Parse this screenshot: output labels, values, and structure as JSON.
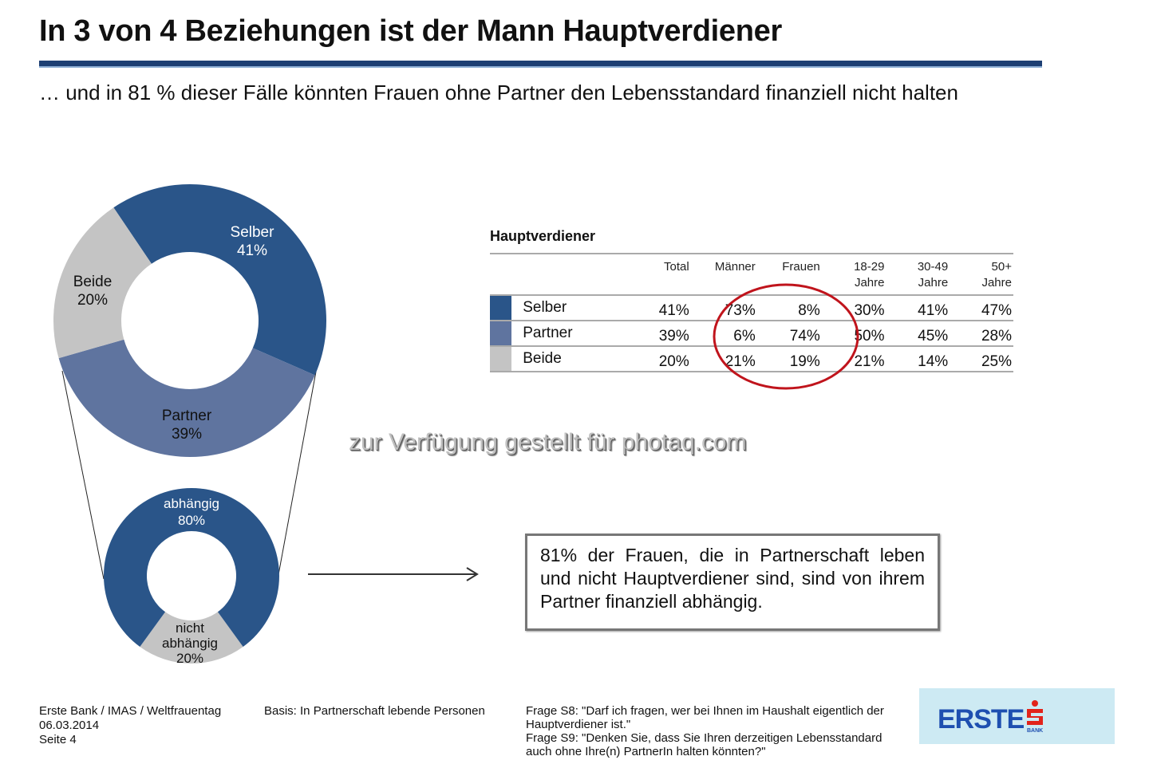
{
  "header": {
    "title": "In 3 von 4 Beziehungen ist der Mann Hauptverdiener",
    "subtitle": "… und in 81 % dieser Fälle könnten Frauen ohne Partner den Lebensstandard finanziell nicht halten"
  },
  "colors": {
    "dark_blue": "#2a5589",
    "mid_blue": "#5f749f",
    "gray": "#c4c4c4",
    "title_rule": "#1d3f73",
    "circle_highlight": "#c0141c",
    "logo_blue": "#1e4fb0",
    "logo_red": "#e2231a"
  },
  "chart_data": [
    {
      "type": "pie",
      "title": "Hauptverdiener (Donut)",
      "slices": [
        {
          "label": "Selber",
          "value": 41,
          "display": "41%",
          "color": "#2a5589"
        },
        {
          "label": "Partner",
          "value": 39,
          "display": "39%",
          "color": "#5f749f"
        },
        {
          "label": "Beide",
          "value": 20,
          "display": "20%",
          "color": "#c4c4c4"
        }
      ]
    },
    {
      "type": "pie",
      "title": "Abhängigkeit (Donut)",
      "slices": [
        {
          "label": "abhängig",
          "value": 80,
          "display": "80%",
          "color": "#2a5589"
        },
        {
          "label": "nicht abhängig",
          "value": 20,
          "display": "20%",
          "color": "#c4c4c4"
        }
      ]
    },
    {
      "type": "table",
      "title": "Hauptverdiener",
      "columns": [
        "Total",
        "Männer",
        "Frauen",
        "18-29 Jahre",
        "30-49 Jahre",
        "50+ Jahre"
      ],
      "rows": [
        {
          "label": "Selber",
          "color": "#2a5589",
          "values": [
            "41%",
            "73%",
            "8%",
            "30%",
            "41%",
            "47%"
          ]
        },
        {
          "label": "Partner",
          "color": "#5f749f",
          "values": [
            "39%",
            "6%",
            "74%",
            "50%",
            "45%",
            "28%"
          ]
        },
        {
          "label": "Beide",
          "color": "#c4c4c4",
          "values": [
            "20%",
            "21%",
            "19%",
            "21%",
            "14%",
            "25%"
          ]
        }
      ],
      "highlight": "Männer / Frauen columns circled"
    }
  ],
  "table": {
    "title": "Hauptverdiener",
    "headers": [
      {
        "line1": "Total",
        "line2": ""
      },
      {
        "line1": "Männer",
        "line2": ""
      },
      {
        "line1": "Frauen",
        "line2": ""
      },
      {
        "line1": "18-29",
        "line2": "Jahre"
      },
      {
        "line1": "30-49",
        "line2": "Jahre"
      },
      {
        "line1": "50+",
        "line2": "Jahre"
      }
    ]
  },
  "donut_labels": {
    "selber": {
      "name": "Selber",
      "pct": "41%"
    },
    "partner": {
      "name": "Partner",
      "pct": "39%"
    },
    "beide": {
      "name": "Beide",
      "pct": "20%"
    },
    "abhaengig": {
      "name": "abhängig",
      "pct": "80%"
    },
    "nicht": {
      "line1": "nicht",
      "line2": "abhängig",
      "pct": "20%"
    }
  },
  "watermark": "zur Verfügung gestellt für photaq.com",
  "callout": "81% der Frauen, die in Partnerschaft leben und nicht Hauptverdiener sind, sind von ihrem Partner finanziell abhängig.",
  "footer": {
    "left": [
      "Erste Bank / IMAS / Weltfrauentag",
      "06.03.2014",
      "Seite 4"
    ],
    "basis": "Basis: In Partnerschaft lebende Personen",
    "questions": [
      "Frage S8: \"Darf ich fragen, wer bei Ihnen im Haushalt eigentlich der Hauptverdiener ist.\"",
      "Frage S9: \"Denken Sie, dass Sie Ihren derzeitigen Lebensstandard auch ohne Ihre(n) PartnerIn halten könnten?\""
    ]
  },
  "logo": {
    "text": "ERSTE",
    "sub": "BANK"
  }
}
